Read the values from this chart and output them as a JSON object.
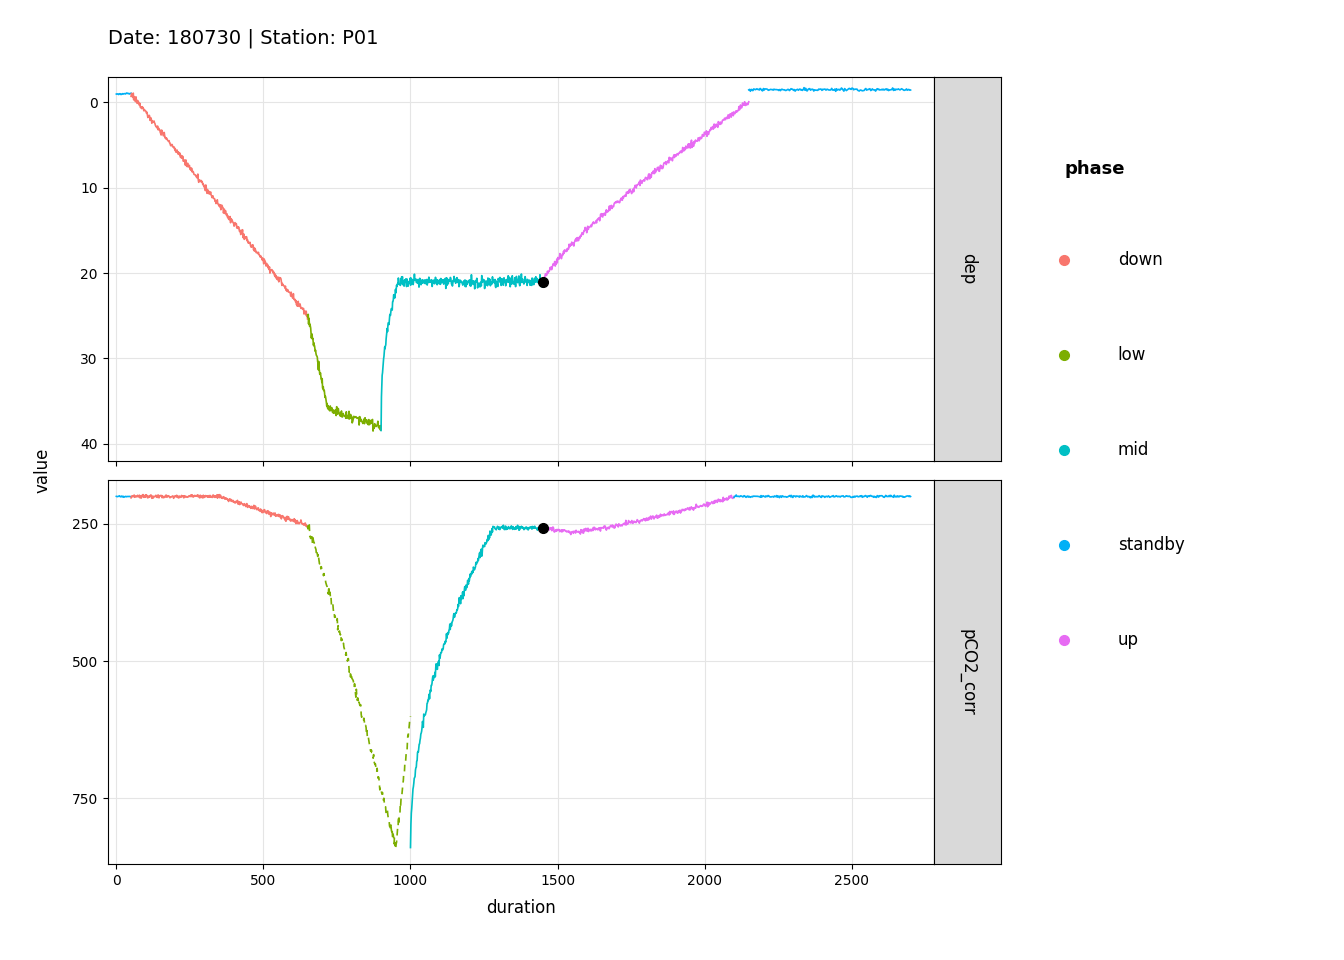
{
  "title": "Date: 180730 | Station: P01",
  "xlabel": "duration",
  "ylabel": "value",
  "strip_label_top": "dep",
  "strip_label_bottom": "pCO2_corr",
  "colors": {
    "down": "#F8766D",
    "low": "#7CAE00",
    "mid": "#00BFC4",
    "standby": "#00B0F6",
    "up": "#E76BF3"
  },
  "strip_bg": "#D9D9D9",
  "dep_ylim": [
    42,
    -3
  ],
  "pco2_ylim": [
    870,
    170
  ],
  "dep_yticks": [
    0,
    10,
    20,
    30,
    40
  ],
  "pco2_yticks": [
    250,
    500,
    750
  ],
  "xlim": [
    -30,
    2780
  ],
  "xticks": [
    0,
    500,
    1000,
    1500,
    2000,
    2500
  ]
}
